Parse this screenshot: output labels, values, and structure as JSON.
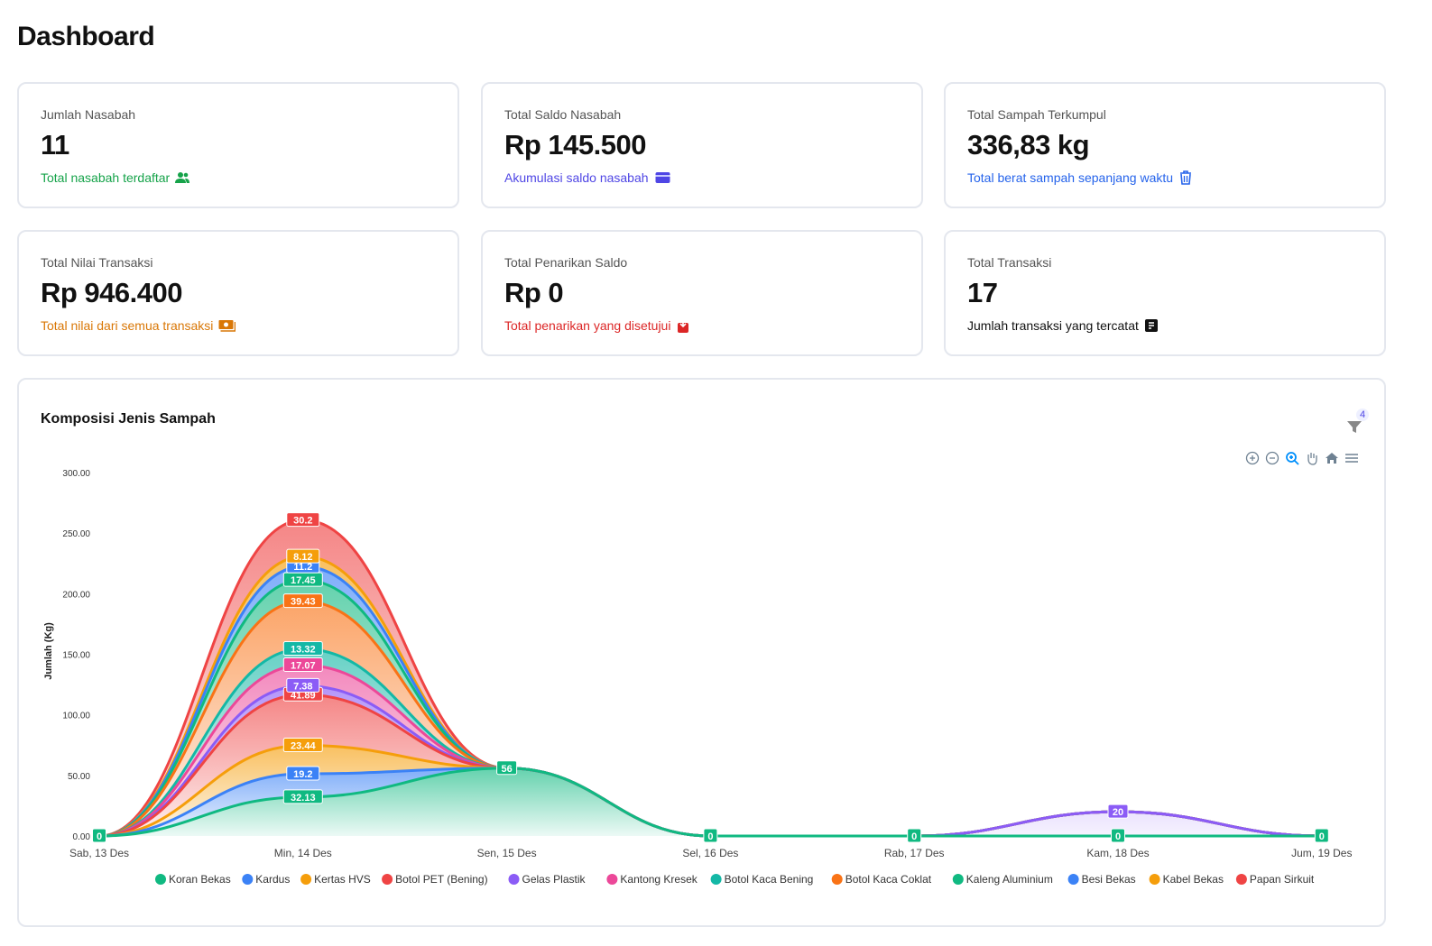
{
  "page_title": "Dashboard",
  "cards": [
    {
      "label": "Jumlah Nasabah",
      "value": "11",
      "sub": "Total nasabah terdaftar",
      "icon": "users-icon",
      "color": "#16a34a"
    },
    {
      "label": "Total Saldo Nasabah",
      "value": "Rp 145.500",
      "sub": "Akumulasi saldo nasabah",
      "icon": "wallet-icon",
      "color": "#4f46e5"
    },
    {
      "label": "Total Sampah Terkumpul",
      "value": "336,83 kg",
      "sub": "Total berat sampah sepanjang waktu",
      "icon": "trash-icon",
      "color": "#2563eb"
    },
    {
      "label": "Total Nilai Transaksi",
      "value": "Rp 946.400",
      "sub": "Total nilai dari semua transaksi",
      "icon": "money-icon",
      "color": "#d97706"
    },
    {
      "label": "Total Penarikan Saldo",
      "value": "Rp 0",
      "sub": "Total penarikan yang disetujui",
      "icon": "withdraw-icon",
      "color": "#dc2626"
    },
    {
      "label": "Total Transaksi",
      "value": "17",
      "sub": "Jumlah transaksi yang tercatat",
      "icon": "receipt-icon",
      "color": "#111111"
    }
  ],
  "chart": {
    "title": "Komposisi Jenis Sampah",
    "filter_badge": "4",
    "toolbar": [
      "zoom-in-icon",
      "zoom-out-icon",
      "zoom-select-icon",
      "pan-icon",
      "home-icon",
      "menu-icon"
    ]
  },
  "chart_data": {
    "type": "area",
    "stacked": true,
    "ylabel": "Jumlah (Kg)",
    "ylim": [
      0,
      300
    ],
    "yticks": [
      "0.00",
      "50.00",
      "100.00",
      "150.00",
      "200.00",
      "250.00",
      "300.00"
    ],
    "categories": [
      "Sab, 13 Des",
      "Min, 14 Des",
      "Sen, 15 Des",
      "Sel, 16 Des",
      "Rab, 17 Des",
      "Kam, 18 Des",
      "Jum, 19 Des"
    ],
    "legend": "bottom",
    "series": [
      {
        "name": "Koran Bekas",
        "color": "#10b981",
        "values": [
          0,
          32.13,
          56,
          0,
          0,
          0,
          0
        ]
      },
      {
        "name": "Kardus",
        "color": "#3b82f6",
        "values": [
          0,
          19.2,
          0,
          0,
          0,
          0,
          0
        ]
      },
      {
        "name": "Kertas HVS",
        "color": "#f59e0b",
        "values": [
          0,
          23.44,
          0,
          0,
          0,
          0,
          0
        ]
      },
      {
        "name": "Botol PET (Bening)",
        "color": "#ef4444",
        "values": [
          0,
          41.89,
          0,
          0,
          0,
          0,
          0
        ]
      },
      {
        "name": "Gelas Plastik",
        "color": "#8b5cf6",
        "values": [
          0,
          7.38,
          0,
          0,
          0,
          20,
          0
        ]
      },
      {
        "name": "Kantong Kresek",
        "color": "#ec4899",
        "values": [
          0,
          17.07,
          0,
          0,
          0,
          0,
          0
        ]
      },
      {
        "name": "Botol Kaca Bening",
        "color": "#14b8a6",
        "values": [
          0,
          13.32,
          0,
          0,
          0,
          0,
          0
        ]
      },
      {
        "name": "Botol Kaca Coklat",
        "color": "#f97316",
        "values": [
          0,
          39.43,
          0,
          0,
          0,
          0,
          0
        ]
      },
      {
        "name": "Kaleng Aluminium",
        "color": "#10b981",
        "values": [
          0,
          17.45,
          0,
          0,
          0,
          0,
          0
        ]
      },
      {
        "name": "Besi Bekas",
        "color": "#3b82f6",
        "values": [
          0,
          11.2,
          0,
          0,
          0,
          0,
          0
        ]
      },
      {
        "name": "Kabel Bekas",
        "color": "#f59e0b",
        "values": [
          0,
          8.12,
          0,
          0,
          0,
          0,
          0
        ]
      },
      {
        "name": "Papan Sirkuit",
        "color": "#ef4444",
        "values": [
          0,
          30.2,
          0,
          0,
          0,
          0,
          0
        ]
      }
    ]
  }
}
